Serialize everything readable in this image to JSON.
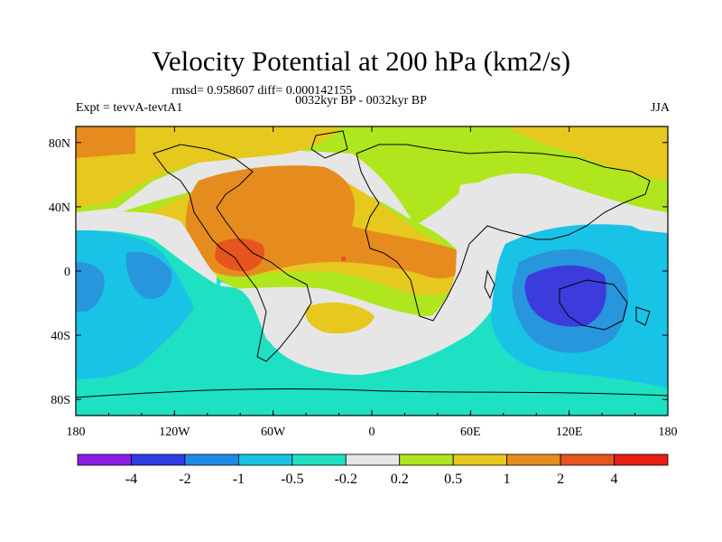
{
  "header": {
    "title": "Velocity Potential at 200 hPa (km2/s)",
    "stats": "rmsd= 0.958607 diff= 0.000142155",
    "experiment": "Expt = tevvA-tevtA1",
    "period": "0032kyr BP - 0032kyr BP",
    "season": "JJA"
  },
  "axes": {
    "lon_ticks": [
      "180",
      "120W",
      "60W",
      "0",
      "60E",
      "120E",
      "180"
    ],
    "lat_ticks": [
      "80N",
      "40N",
      "0",
      "40S",
      "80S"
    ]
  },
  "colorbar": {
    "colors": [
      "#8a1ee6",
      "#2d3ce6",
      "#1e8ce6",
      "#19c3e6",
      "#1ee1c3",
      "#e6e6e6",
      "#afe61e",
      "#e6c81e",
      "#e68c1e",
      "#e6551e",
      "#e61e14"
    ],
    "labels": [
      "-4",
      "-2",
      "-1",
      "-0.5",
      "-0.2",
      "0.2",
      "0.5",
      "1",
      "2",
      "4"
    ]
  },
  "palette": {
    "ocean_level_minus2": "#3c3cdc",
    "level_minus1": "#2896dc",
    "level_minus05": "#19c3e6",
    "level_minus02": "#1ee1c3",
    "neutral": "#e6e6e6",
    "level_02": "#afe61e",
    "level_05": "#e6c81e",
    "level_1": "#e68c1e",
    "level_2": "#e6551e"
  }
}
